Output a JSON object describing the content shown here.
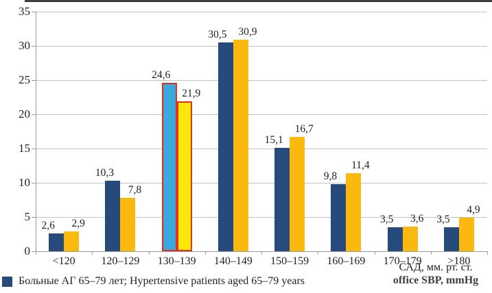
{
  "chart_data": {
    "type": "bar",
    "title": "",
    "categories": [
      "<120",
      "120–129",
      "130–139",
      "140–149",
      "150–159",
      "160–169",
      "170–179",
      ">180"
    ],
    "series": [
      {
        "name": "Больные АГ 65–79 лет; Hypertensive patients aged 65–79 years",
        "color": "#274A7D",
        "values": [
          2.6,
          10.3,
          24.6,
          30.5,
          15.1,
          9.8,
          3.5,
          3.5
        ],
        "labels": [
          "2,6",
          "10,3",
          "24,6",
          "30,5",
          "15,1",
          "9,8",
          "3,5",
          "3,5"
        ]
      },
      {
        "name": "",
        "color": "#FBB80F",
        "values": [
          2.9,
          7.8,
          21.9,
          30.9,
          16.7,
          11.4,
          3.6,
          4.9
        ],
        "labels": [
          "2,9",
          "7,8",
          "21,9",
          "30,9",
          "16,7",
          "11,4",
          "3,6",
          "4,9"
        ]
      }
    ],
    "highlight": {
      "category": "130–139",
      "index": 2,
      "series1_color": "#3BA9DE",
      "series2_color": "#FFE60A",
      "border_color": "#E0301E"
    },
    "ylim": [
      0,
      35
    ],
    "yticks": [
      0,
      5,
      10,
      15,
      20,
      25,
      30,
      35
    ],
    "grid": true,
    "legend_position": "bottom-left",
    "xlabel_lines": [
      "САД, мм. рт. ст.",
      "office SBP, mmHg"
    ],
    "legend": {
      "items": [
        {
          "label": "Больные АГ 65–79 лет; Hypertensive patients aged 65–79 years",
          "color": "#274A7D"
        }
      ]
    }
  },
  "colors": {
    "gridline": "#C2C2C2",
    "axis": "#9A9A9A",
    "text": "#1F1F1F",
    "top_border": "#3D3D3D"
  }
}
